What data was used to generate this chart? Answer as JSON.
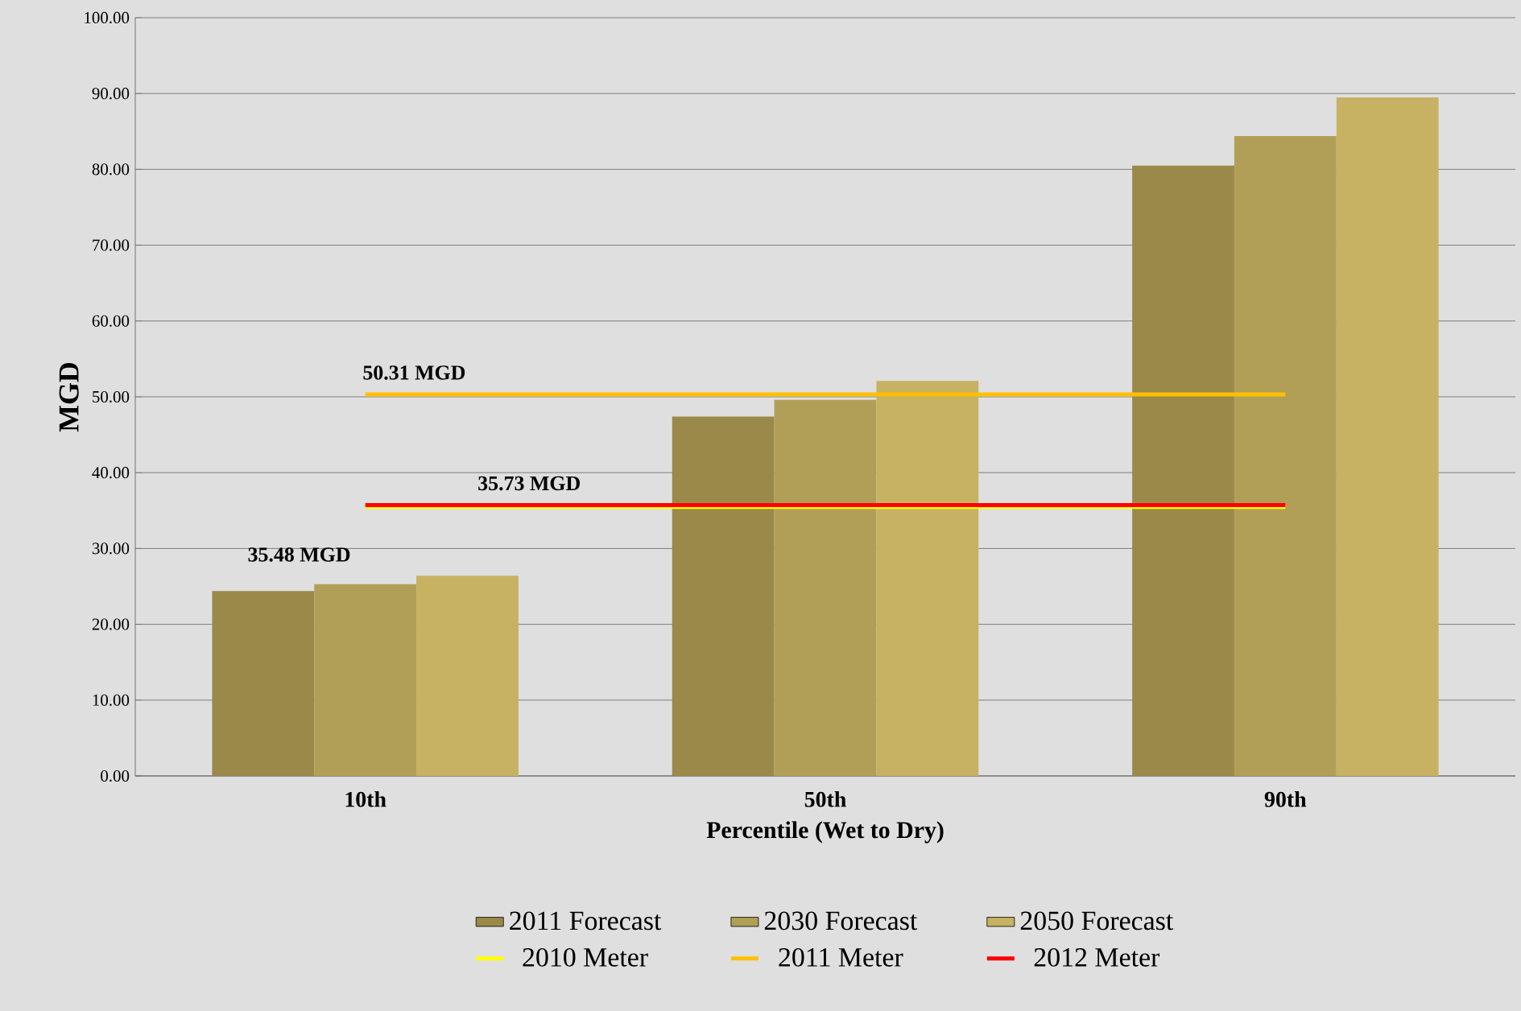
{
  "chart_data": {
    "type": "bar",
    "xlabel": "Percentile (Wet to Dry)",
    "ylabel": "MGD",
    "categories": [
      "10th",
      "50th",
      "90th"
    ],
    "series": [
      {
        "name": "2011 Forecast",
        "color": "#9b894a",
        "values": [
          24.4,
          47.4,
          80.5
        ]
      },
      {
        "name": "2030 Forecast",
        "color": "#b19f58",
        "values": [
          25.3,
          49.6,
          84.4
        ]
      },
      {
        "name": "2050 Forecast",
        "color": "#c7b263",
        "values": [
          26.4,
          52.1,
          89.5
        ]
      },
      {
        "name": "2010 Meter",
        "type": "line",
        "color": "#ffff00",
        "values": [
          35.48,
          35.48,
          35.48
        ]
      },
      {
        "name": "2011 Meter",
        "type": "line",
        "color": "#ffc000",
        "values": [
          50.31,
          50.31,
          50.31
        ]
      },
      {
        "name": "2012 Meter",
        "type": "line",
        "color": "#ff0000",
        "values": [
          35.73,
          35.73,
          35.73
        ]
      }
    ],
    "annotations": [
      "50.31 MGD",
      "35.73 MGD",
      "35.48 MGD"
    ],
    "ylim": [
      0,
      100
    ],
    "yticks": [
      {
        "value": 0,
        "label": "0.00"
      },
      {
        "value": 10,
        "label": "10.00"
      },
      {
        "value": 20,
        "label": "20.00"
      },
      {
        "value": 30,
        "label": "30.00"
      },
      {
        "value": 40,
        "label": "40.00"
      },
      {
        "value": 50,
        "label": "50.00"
      },
      {
        "value": 60,
        "label": "60.00"
      },
      {
        "value": 70,
        "label": "70.00"
      },
      {
        "value": 80,
        "label": "80.00"
      },
      {
        "value": 90,
        "label": "90.00"
      },
      {
        "value": 100,
        "label": "100.00"
      }
    ],
    "grid": "y",
    "legend": "bottom"
  }
}
